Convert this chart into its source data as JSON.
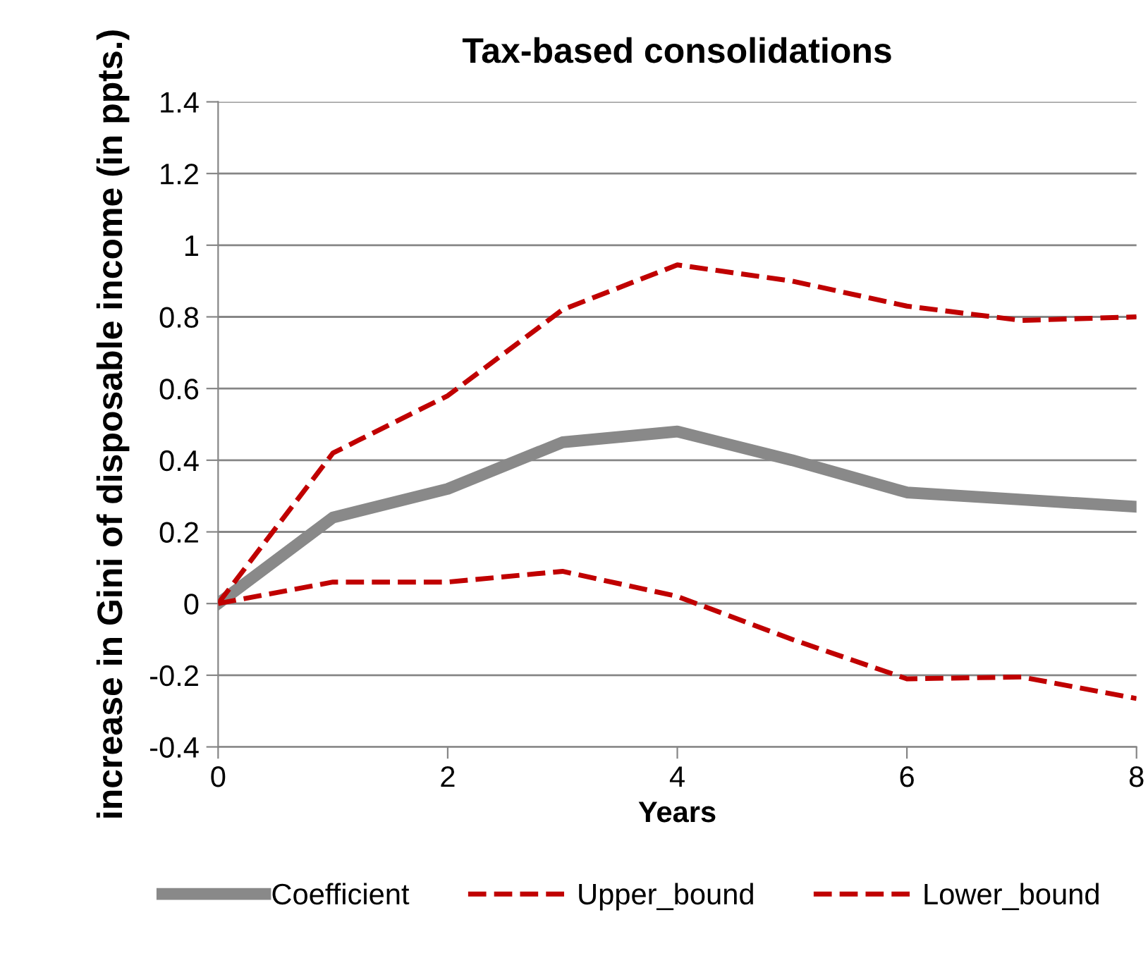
{
  "chart_data": {
    "type": "line",
    "title": "Tax-based consolidations",
    "xlabel": "Years",
    "ylabel": "increase in Gini of disposable income (in ppts.)",
    "x": [
      0,
      1,
      2,
      3,
      4,
      5,
      6,
      7,
      8
    ],
    "series": [
      {
        "name": "Coefficient",
        "color": "#898989",
        "line_style": "solid",
        "values": [
          0,
          0.24,
          0.32,
          0.45,
          0.48,
          0.4,
          0.31,
          0.29,
          0.27
        ]
      },
      {
        "name": "Upper_bound",
        "color": "#c00000",
        "line_style": "dashed",
        "values": [
          0,
          0.42,
          0.58,
          0.82,
          0.945,
          0.9,
          0.83,
          0.79,
          0.8
        ]
      },
      {
        "name": "Lower_bound",
        "color": "#c00000",
        "line_style": "dashed",
        "values": [
          0,
          0.06,
          0.06,
          0.09,
          0.02,
          -0.1,
          -0.21,
          -0.205,
          -0.265
        ]
      }
    ],
    "xlim": [
      0,
      8
    ],
    "xticks": [
      0,
      2,
      4,
      6,
      8
    ],
    "ylim": [
      -0.4,
      1.4
    ],
    "yticks": [
      -0.4,
      -0.2,
      0,
      0.2,
      0.4,
      0.6,
      0.8,
      1,
      1.2,
      1.4
    ],
    "grid": "y",
    "legend": "bottom",
    "marker": "none"
  }
}
